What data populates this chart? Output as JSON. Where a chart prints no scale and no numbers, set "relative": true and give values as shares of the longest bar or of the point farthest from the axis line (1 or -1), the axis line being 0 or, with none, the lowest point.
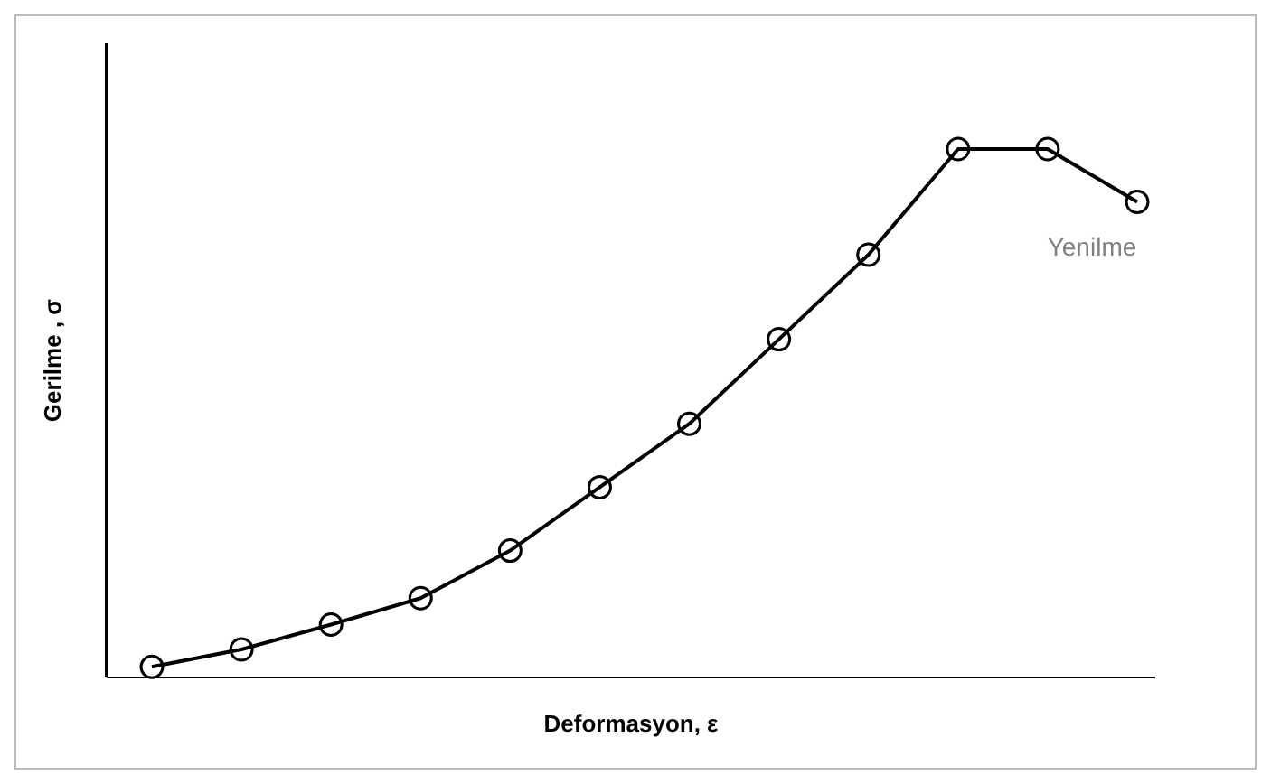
{
  "chart_data": {
    "type": "line",
    "relative": true,
    "xlabel": "Deformasyon, ε",
    "ylabel": "Gerilme , σ",
    "categories": [
      null,
      null,
      null,
      null,
      null,
      null,
      null,
      null,
      null,
      null,
      null,
      null
    ],
    "series": [
      {
        "color": "#000000",
        "values": [
          0.02,
          0.053,
          0.1,
          0.15,
          0.24,
          0.36,
          0.48,
          0.64,
          0.8,
          1,
          1,
          0.9
        ]
      }
    ],
    "marker": "circle",
    "line_style": "solid",
    "legend": false,
    "annotations": [
      "Yenilme"
    ]
  }
}
